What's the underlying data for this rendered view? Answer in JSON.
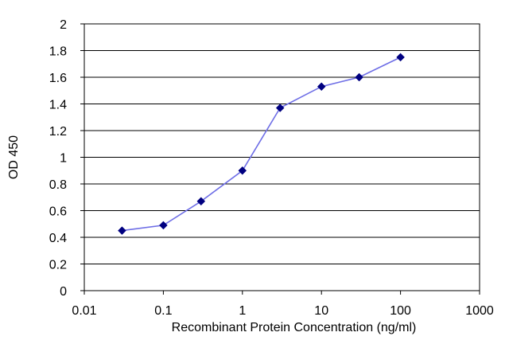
{
  "chart_data": {
    "type": "line",
    "xlabel": "Recombinant Protein Concentration (ng/ml)",
    "ylabel": "OD 450",
    "x_scale": "log",
    "xlim": [
      0.01,
      1000
    ],
    "ylim": [
      0,
      2
    ],
    "x_ticks": [
      0.01,
      0.1,
      1,
      10,
      100,
      1000
    ],
    "x_tick_labels": [
      "0.01",
      "0.1",
      "1",
      "10",
      "100",
      "1000"
    ],
    "y_ticks": [
      0,
      0.2,
      0.4,
      0.6,
      0.8,
      1,
      1.2,
      1.4,
      1.6,
      1.8,
      2
    ],
    "y_tick_labels": [
      "0",
      "0.2",
      "0.4",
      "0.6",
      "0.8",
      "1",
      "1.2",
      "1.4",
      "1.6",
      "1.8",
      "2"
    ],
    "grid": "horizontal",
    "series": [
      {
        "x": [
          0.03,
          0.1,
          0.3,
          1,
          3,
          10,
          30,
          100
        ],
        "y": [
          0.45,
          0.49,
          0.67,
          0.9,
          1.37,
          1.53,
          1.6,
          1.75
        ]
      }
    ]
  },
  "colors": {
    "line": "#6e6ee6",
    "marker": "#000080",
    "grid": "#000000",
    "axis": "#000000"
  }
}
